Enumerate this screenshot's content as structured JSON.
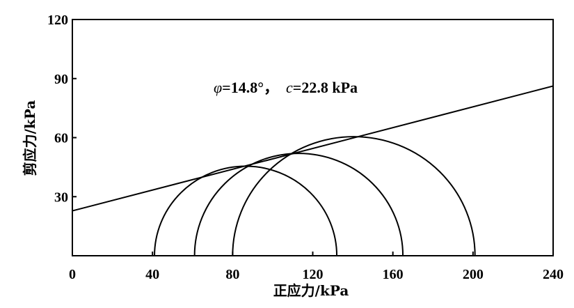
{
  "chart_data": {
    "type": "scatter",
    "title": "",
    "xlabel": "正应力/kPa",
    "ylabel": "剪应力/kPa",
    "xlim": [
      0,
      240
    ],
    "ylim": [
      0,
      120
    ],
    "xticks": [
      0,
      40,
      80,
      120,
      160,
      200,
      240
    ],
    "yticks": [
      30,
      60,
      90,
      120
    ],
    "grid": false,
    "mohr_circles": [
      {
        "sigma3": 41,
        "sigma1": 132
      },
      {
        "sigma3": 61,
        "sigma1": 165
      },
      {
        "sigma3": 80,
        "sigma1": 201
      }
    ],
    "envelope": {
      "phi_deg": 14.8,
      "c_kPa": 22.8
    },
    "annotation": {
      "phi_symbol": "φ",
      "phi_text": "=14.8°",
      "separator": "，",
      "c_symbol": "c",
      "c_text": "=22.8 kPa"
    }
  }
}
